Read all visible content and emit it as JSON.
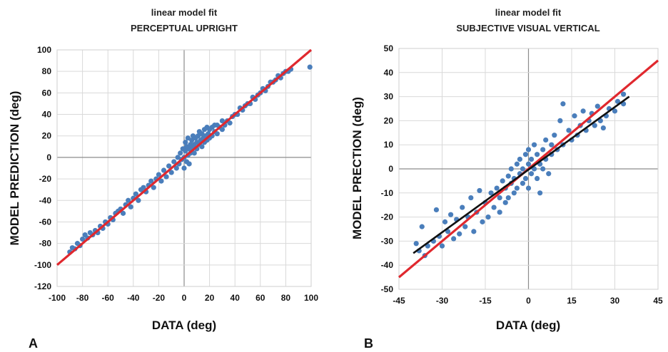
{
  "chart_data": [
    {
      "panel": "A",
      "type": "scatter",
      "title": "linear model fit",
      "subtitle": "PERCEPTUAL UPRIGHT",
      "xlabel": "DATA (deg)",
      "ylabel": "MODEL PREDICTION (deg)",
      "xlim": [
        -100,
        100
      ],
      "ylim": [
        -120,
        100
      ],
      "xticks": [
        "-100",
        "-80",
        "-60",
        "-40",
        "-20",
        "0",
        "20",
        "40",
        "60",
        "80",
        "100"
      ],
      "yticks": [
        "100",
        "80",
        "60",
        "40",
        "20",
        "0",
        "-20",
        "-40",
        "-60",
        "-80",
        "-100",
        "-120"
      ],
      "grid": true,
      "colors": {
        "points": "#4a7ebb",
        "identity_line": "#e0282e"
      },
      "identity_line": {
        "x": [
          -100,
          100
        ],
        "y": [
          -100,
          100
        ]
      },
      "points": [
        [
          -90,
          -88
        ],
        [
          -88,
          -84
        ],
        [
          -86,
          -85
        ],
        [
          -84,
          -80
        ],
        [
          -82,
          -82
        ],
        [
          -80,
          -76
        ],
        [
          -78,
          -72
        ],
        [
          -76,
          -75
        ],
        [
          -74,
          -70
        ],
        [
          -72,
          -72
        ],
        [
          -70,
          -68
        ],
        [
          -68,
          -70
        ],
        [
          -66,
          -64
        ],
        [
          -64,
          -66
        ],
        [
          -62,
          -60
        ],
        [
          -60,
          -62
        ],
        [
          -58,
          -56
        ],
        [
          -56,
          -58
        ],
        [
          -54,
          -52
        ],
        [
          -52,
          -50
        ],
        [
          -50,
          -48
        ],
        [
          -48,
          -52
        ],
        [
          -46,
          -44
        ],
        [
          -44,
          -40
        ],
        [
          -42,
          -46
        ],
        [
          -40,
          -38
        ],
        [
          -38,
          -34
        ],
        [
          -36,
          -40
        ],
        [
          -34,
          -30
        ],
        [
          -32,
          -28
        ],
        [
          -30,
          -32
        ],
        [
          -28,
          -26
        ],
        [
          -26,
          -22
        ],
        [
          -24,
          -28
        ],
        [
          -22,
          -20
        ],
        [
          -20,
          -16
        ],
        [
          -18,
          -22
        ],
        [
          -16,
          -12
        ],
        [
          -14,
          -18
        ],
        [
          -12,
          -8
        ],
        [
          -10,
          -14
        ],
        [
          -8,
          -4
        ],
        [
          -6,
          -10
        ],
        [
          -5,
          0
        ],
        [
          -4,
          -6
        ],
        [
          -3,
          4
        ],
        [
          -2,
          -2
        ],
        [
          -1,
          8
        ],
        [
          0,
          0
        ],
        [
          0,
          -10
        ],
        [
          1,
          6
        ],
        [
          1,
          14
        ],
        [
          2,
          -4
        ],
        [
          2,
          10
        ],
        [
          3,
          2
        ],
        [
          3,
          18
        ],
        [
          4,
          8
        ],
        [
          4,
          -6
        ],
        [
          5,
          12
        ],
        [
          5,
          4
        ],
        [
          6,
          16
        ],
        [
          6,
          6
        ],
        [
          7,
          10
        ],
        [
          7,
          20
        ],
        [
          8,
          12
        ],
        [
          8,
          4
        ],
        [
          9,
          18
        ],
        [
          10,
          14
        ],
        [
          10,
          8
        ],
        [
          11,
          20
        ],
        [
          12,
          12
        ],
        [
          12,
          24
        ],
        [
          13,
          16
        ],
        [
          14,
          10
        ],
        [
          14,
          22
        ],
        [
          15,
          18
        ],
        [
          16,
          14
        ],
        [
          16,
          26
        ],
        [
          17,
          20
        ],
        [
          18,
          16
        ],
        [
          18,
          28
        ],
        [
          19,
          22
        ],
        [
          20,
          18
        ],
        [
          20,
          26
        ],
        [
          22,
          20
        ],
        [
          22,
          28
        ],
        [
          24,
          24
        ],
        [
          24,
          30
        ],
        [
          26,
          22
        ],
        [
          26,
          30
        ],
        [
          28,
          28
        ],
        [
          30,
          26
        ],
        [
          30,
          34
        ],
        [
          32,
          30
        ],
        [
          34,
          34
        ],
        [
          36,
          32
        ],
        [
          38,
          38
        ],
        [
          40,
          40
        ],
        [
          42,
          40
        ],
        [
          44,
          46
        ],
        [
          46,
          44
        ],
        [
          48,
          48
        ],
        [
          50,
          50
        ],
        [
          52,
          50
        ],
        [
          54,
          56
        ],
        [
          56,
          54
        ],
        [
          58,
          58
        ],
        [
          60,
          60
        ],
        [
          62,
          64
        ],
        [
          64,
          62
        ],
        [
          66,
          66
        ],
        [
          68,
          70
        ],
        [
          70,
          70
        ],
        [
          72,
          72
        ],
        [
          74,
          76
        ],
        [
          76,
          74
        ],
        [
          78,
          78
        ],
        [
          80,
          80
        ],
        [
          82,
          80
        ],
        [
          84,
          82
        ],
        [
          99,
          84
        ]
      ]
    },
    {
      "panel": "B",
      "type": "scatter",
      "title": "linear model fit",
      "subtitle": "SUBJECTIVE VISUAL VERTICAL",
      "xlabel": "DATA (deg)",
      "ylabel": "MODEL PRECTION (deg)",
      "xlim": [
        -45,
        45
      ],
      "ylim": [
        -50,
        50
      ],
      "xticks": [
        "-45",
        "-30",
        "-15",
        "0",
        "15",
        "30",
        "45"
      ],
      "yticks": [
        "50",
        "40",
        "30",
        "20",
        "10",
        "0",
        "-10",
        "-20",
        "-30",
        "-40",
        "-50"
      ],
      "grid": true,
      "colors": {
        "points": "#4a7ebb",
        "identity_line": "#e0282e",
        "fit_line": "#111111"
      },
      "identity_line": {
        "x": [
          -45,
          45
        ],
        "y": [
          -45,
          45
        ]
      },
      "fit_line": {
        "x": [
          -40,
          35
        ],
        "y": [
          -35,
          30
        ]
      },
      "points": [
        [
          -39,
          -31
        ],
        [
          -38,
          -34
        ],
        [
          -37,
          -24
        ],
        [
          -36,
          -36
        ],
        [
          -35,
          -32
        ],
        [
          -33,
          -30
        ],
        [
          -32,
          -17
        ],
        [
          -31,
          -28
        ],
        [
          -30,
          -32
        ],
        [
          -29,
          -22
        ],
        [
          -28,
          -26
        ],
        [
          -27,
          -19
        ],
        [
          -26,
          -29
        ],
        [
          -25,
          -21
        ],
        [
          -24,
          -27
        ],
        [
          -23,
          -16
        ],
        [
          -22,
          -24
        ],
        [
          -21,
          -20
        ],
        [
          -20,
          -12
        ],
        [
          -19,
          -26
        ],
        [
          -18,
          -18
        ],
        [
          -17,
          -9
        ],
        [
          -16,
          -22
        ],
        [
          -15,
          -14
        ],
        [
          -14,
          -20
        ],
        [
          -13,
          -10
        ],
        [
          -12,
          -16
        ],
        [
          -11,
          -8
        ],
        [
          -10,
          -18
        ],
        [
          -10,
          -12
        ],
        [
          -9,
          -5
        ],
        [
          -8,
          -14
        ],
        [
          -8,
          -8
        ],
        [
          -7,
          -3
        ],
        [
          -7,
          -12
        ],
        [
          -6,
          -6
        ],
        [
          -6,
          0
        ],
        [
          -5,
          -10
        ],
        [
          -5,
          -4
        ],
        [
          -4,
          2
        ],
        [
          -4,
          -8
        ],
        [
          -3,
          -2
        ],
        [
          -3,
          4
        ],
        [
          -2,
          -6
        ],
        [
          -2,
          0
        ],
        [
          -1,
          6
        ],
        [
          -1,
          -4
        ],
        [
          0,
          2
        ],
        [
          0,
          -8
        ],
        [
          0,
          8
        ],
        [
          1,
          -2
        ],
        [
          1,
          4
        ],
        [
          2,
          0
        ],
        [
          2,
          10
        ],
        [
          3,
          -4
        ],
        [
          3,
          6
        ],
        [
          4,
          2
        ],
        [
          4,
          -10
        ],
        [
          5,
          8
        ],
        [
          5,
          0
        ],
        [
          6,
          4
        ],
        [
          6,
          12
        ],
        [
          7,
          -2
        ],
        [
          8,
          10
        ],
        [
          8,
          6
        ],
        [
          9,
          14
        ],
        [
          10,
          8
        ],
        [
          11,
          20
        ],
        [
          12,
          27
        ],
        [
          12,
          10
        ],
        [
          14,
          16
        ],
        [
          15,
          12
        ],
        [
          16,
          22
        ],
        [
          17,
          14
        ],
        [
          18,
          18
        ],
        [
          19,
          24
        ],
        [
          20,
          16
        ],
        [
          21,
          20
        ],
        [
          22,
          23
        ],
        [
          23,
          18
        ],
        [
          24,
          26
        ],
        [
          25,
          20
        ],
        [
          26,
          17
        ],
        [
          27,
          22
        ],
        [
          28,
          25
        ],
        [
          30,
          24
        ],
        [
          31,
          28
        ],
        [
          33,
          31
        ],
        [
          33,
          27
        ]
      ]
    }
  ]
}
